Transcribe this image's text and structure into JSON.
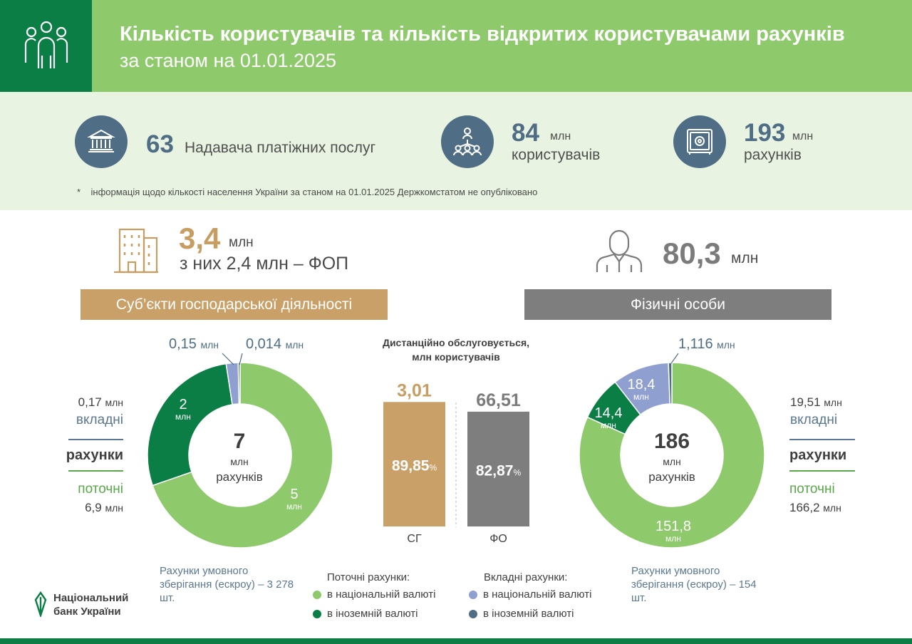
{
  "header": {
    "title": "Кількість користувачів та кількість відкритих користувачами рахунків",
    "subtitle": "за станом на 01.01.2025",
    "icon": "users-group-icon"
  },
  "stats": [
    {
      "icon": "bank-building-icon",
      "value": "63",
      "label": "Надавача платіжних послуг"
    },
    {
      "icon": "network-users-icon",
      "value": "84",
      "unit": "млн",
      "label": "користувачів"
    },
    {
      "icon": "safe-icon",
      "value": "193",
      "unit": "млн",
      "label": "рахунків"
    }
  ],
  "note": {
    "mark": "*",
    "text": "інформація щодо кількості населення України  за станом на 01.01.2025 Держкомстатом не опубліковано"
  },
  "business": {
    "icon": "office-building-icon",
    "value": "3,4",
    "unit": "млн",
    "detail": "з них 2,4 млн – ФОП",
    "banner": "Суб’єкти господарської діяльності"
  },
  "individuals": {
    "icon": "person-icon",
    "value": "80,3",
    "unit": "млн",
    "banner": "Фізичні особи"
  },
  "labels": {
    "mln": "млн",
    "deposit": "вкладні",
    "accounts": "рахунки",
    "current": "поточні",
    "accounts_center": "рахунків",
    "remote_title_1": "Дистанційно обслуговується,",
    "remote_title_2": "млн користувачів",
    "percent": "%"
  },
  "colors": {
    "current_national": "#8ec96b",
    "current_foreign": "#0b7e45",
    "deposit_national": "#8f9fcf",
    "deposit_foreign": "#4f6e85",
    "bar_sg": "#c9a068",
    "bar_fo": "#7e7e7e"
  },
  "chart_data": [
    {
      "type": "pie",
      "name": "business_accounts",
      "categories": [
        "current_national",
        "current_foreign",
        "deposit_national",
        "deposit_foreign"
      ],
      "values": [
        5,
        2,
        0.15,
        0.014
      ],
      "labels": [
        "5",
        "2",
        "0,15",
        "0,014"
      ],
      "center_value": "7",
      "side": {
        "deposit_value": "0,17",
        "current_value": "6,9"
      },
      "escrow": "Рахунки умовного зберігання (ескроу) – 3 278 шт."
    },
    {
      "type": "bar",
      "name": "remote_service",
      "categories": [
        "СГ",
        "ФО"
      ],
      "values": [
        3.01,
        66.51
      ],
      "value_labels": [
        "3,01",
        "66,51"
      ],
      "percent_of_base": [
        89.85,
        82.87
      ],
      "percent_labels": [
        "89,85",
        "82,87"
      ]
    },
    {
      "type": "pie",
      "name": "individual_accounts",
      "categories": [
        "current_national",
        "current_foreign",
        "deposit_national",
        "deposit_foreign"
      ],
      "values": [
        151.8,
        14.4,
        18.4,
        1.116
      ],
      "labels": [
        "151,8",
        "14,4",
        "18,4",
        "1,116"
      ],
      "center_value": "186",
      "side": {
        "deposit_value": "19,51",
        "current_value": "166,2"
      },
      "escrow": "Рахунки умовного зберігання (ескроу) – 154 шт."
    }
  ],
  "legend": {
    "current_title": "Поточні рахунки:",
    "deposit_title": "Вкладні рахунки:",
    "national": "в національній валюті",
    "foreign": "в іноземній валюті"
  },
  "logo": {
    "line1": "Національний",
    "line2": "банк України"
  }
}
